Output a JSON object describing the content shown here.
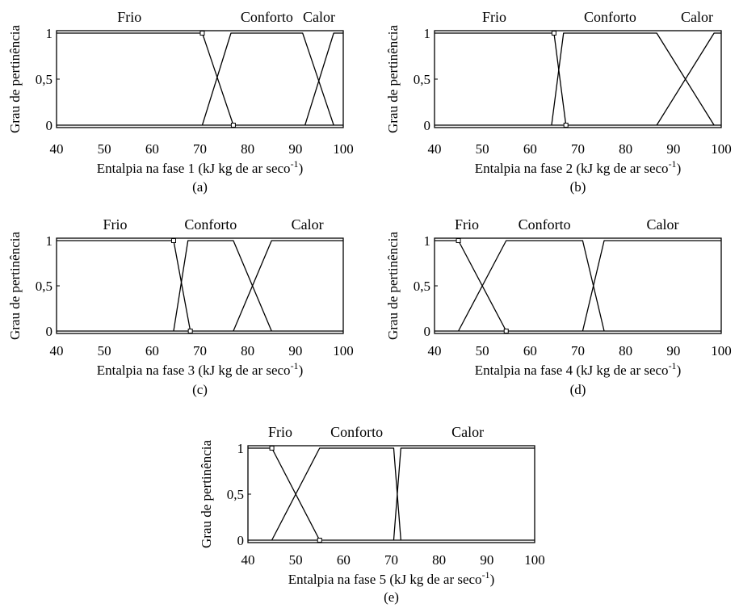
{
  "figure": {
    "colors": {
      "line": "#000000",
      "background": "#ffffff",
      "marker_fill": "#ffffff"
    }
  },
  "chart_data": [
    {
      "type": "line",
      "panel": "(a)",
      "xlabel": {
        "text": "Entalpia na fase 1 (kJ kg de ar seco",
        "sup": "-1",
        "close": ")"
      },
      "ylabel": "Grau de pertinência",
      "xlim": [
        40,
        100
      ],
      "ylim": [
        0,
        1
      ],
      "xticks": [
        "40",
        "50",
        "60",
        "70",
        "80",
        "90",
        "100"
      ],
      "yticks": [
        "0",
        "0,5",
        "1"
      ],
      "grid": false,
      "series": [
        {
          "name": "Frio",
          "x": [
            40,
            70.5,
            77
          ],
          "y": [
            1,
            1,
            0
          ]
        },
        {
          "name": "Conforto",
          "x": [
            70.5,
            76.5,
            91.5,
            98
          ],
          "y": [
            0,
            1,
            1,
            0
          ]
        },
        {
          "name": "Calor",
          "x": [
            92,
            98,
            100
          ],
          "y": [
            0,
            1,
            1
          ]
        }
      ]
    },
    {
      "type": "line",
      "panel": "(b)",
      "xlabel": {
        "text": "Entalpia na fase 2 (kJ kg de ar seco",
        "sup": "-1",
        "close": ")"
      },
      "ylabel": "Grau de pertinência",
      "xlim": [
        40,
        100
      ],
      "ylim": [
        0,
        1
      ],
      "xticks": [
        "40",
        "50",
        "60",
        "70",
        "80",
        "90",
        "100"
      ],
      "yticks": [
        "0",
        "0,5",
        "1"
      ],
      "grid": false,
      "series": [
        {
          "name": "Frio",
          "x": [
            40,
            65,
            67.5
          ],
          "y": [
            1,
            1,
            0
          ]
        },
        {
          "name": "Conforto",
          "x": [
            64.5,
            67,
            86.5,
            98.5
          ],
          "y": [
            0,
            1,
            1,
            0
          ]
        },
        {
          "name": "Calor",
          "x": [
            86.5,
            98.5,
            100
          ],
          "y": [
            0,
            1,
            1
          ]
        }
      ]
    },
    {
      "type": "line",
      "panel": "(c)",
      "xlabel": {
        "text": "Entalpia na fase 3 (kJ kg de ar seco",
        "sup": "-1",
        "close": ")"
      },
      "ylabel": "Grau de pertinência",
      "xlim": [
        40,
        100
      ],
      "ylim": [
        0,
        1
      ],
      "xticks": [
        "40",
        "50",
        "60",
        "70",
        "80",
        "90",
        "100"
      ],
      "yticks": [
        "0",
        "0,5",
        "1"
      ],
      "grid": false,
      "series": [
        {
          "name": "Frio",
          "x": [
            40,
            64.5,
            68
          ],
          "y": [
            1,
            1,
            0
          ]
        },
        {
          "name": "Conforto",
          "x": [
            64.5,
            67.5,
            77,
            85
          ],
          "y": [
            0,
            1,
            1,
            0
          ]
        },
        {
          "name": "Calor",
          "x": [
            77,
            85,
            100
          ],
          "y": [
            0,
            1,
            1
          ]
        }
      ]
    },
    {
      "type": "line",
      "panel": "(d)",
      "xlabel": {
        "text": "Entalpia na fase 4 (kJ kg de ar seco",
        "sup": "-1",
        "close": ")"
      },
      "ylabel": "Grau de pertinência",
      "xlim": [
        40,
        100
      ],
      "ylim": [
        0,
        1
      ],
      "xticks": [
        "40",
        "50",
        "60",
        "70",
        "80",
        "90",
        "100"
      ],
      "yticks": [
        "0",
        "0,5",
        "1"
      ],
      "grid": false,
      "series": [
        {
          "name": "Frio",
          "x": [
            40,
            45,
            55
          ],
          "y": [
            1,
            1,
            0
          ]
        },
        {
          "name": "Conforto",
          "x": [
            45,
            55,
            71,
            75.5
          ],
          "y": [
            0,
            1,
            1,
            0
          ]
        },
        {
          "name": "Calor",
          "x": [
            71,
            75.5,
            100
          ],
          "y": [
            0,
            1,
            1
          ]
        }
      ]
    },
    {
      "type": "line",
      "panel": "(e)",
      "xlabel": {
        "text": "Entalpia na fase 5 (kJ kg de ar seco",
        "sup": "-1",
        "close": ")"
      },
      "ylabel": "Grau de pertinência",
      "xlim": [
        40,
        100
      ],
      "ylim": [
        0,
        1
      ],
      "xticks": [
        "40",
        "50",
        "60",
        "70",
        "80",
        "90",
        "100"
      ],
      "yticks": [
        "0",
        "0,5",
        "1"
      ],
      "grid": false,
      "series": [
        {
          "name": "Frio",
          "x": [
            40,
            45,
            55
          ],
          "y": [
            1,
            1,
            0
          ]
        },
        {
          "name": "Conforto",
          "x": [
            45,
            55,
            70.5,
            72
          ],
          "y": [
            0,
            1,
            1,
            0
          ]
        },
        {
          "name": "Calor",
          "x": [
            70.5,
            72,
            100
          ],
          "y": [
            0,
            1,
            1
          ]
        }
      ]
    }
  ]
}
